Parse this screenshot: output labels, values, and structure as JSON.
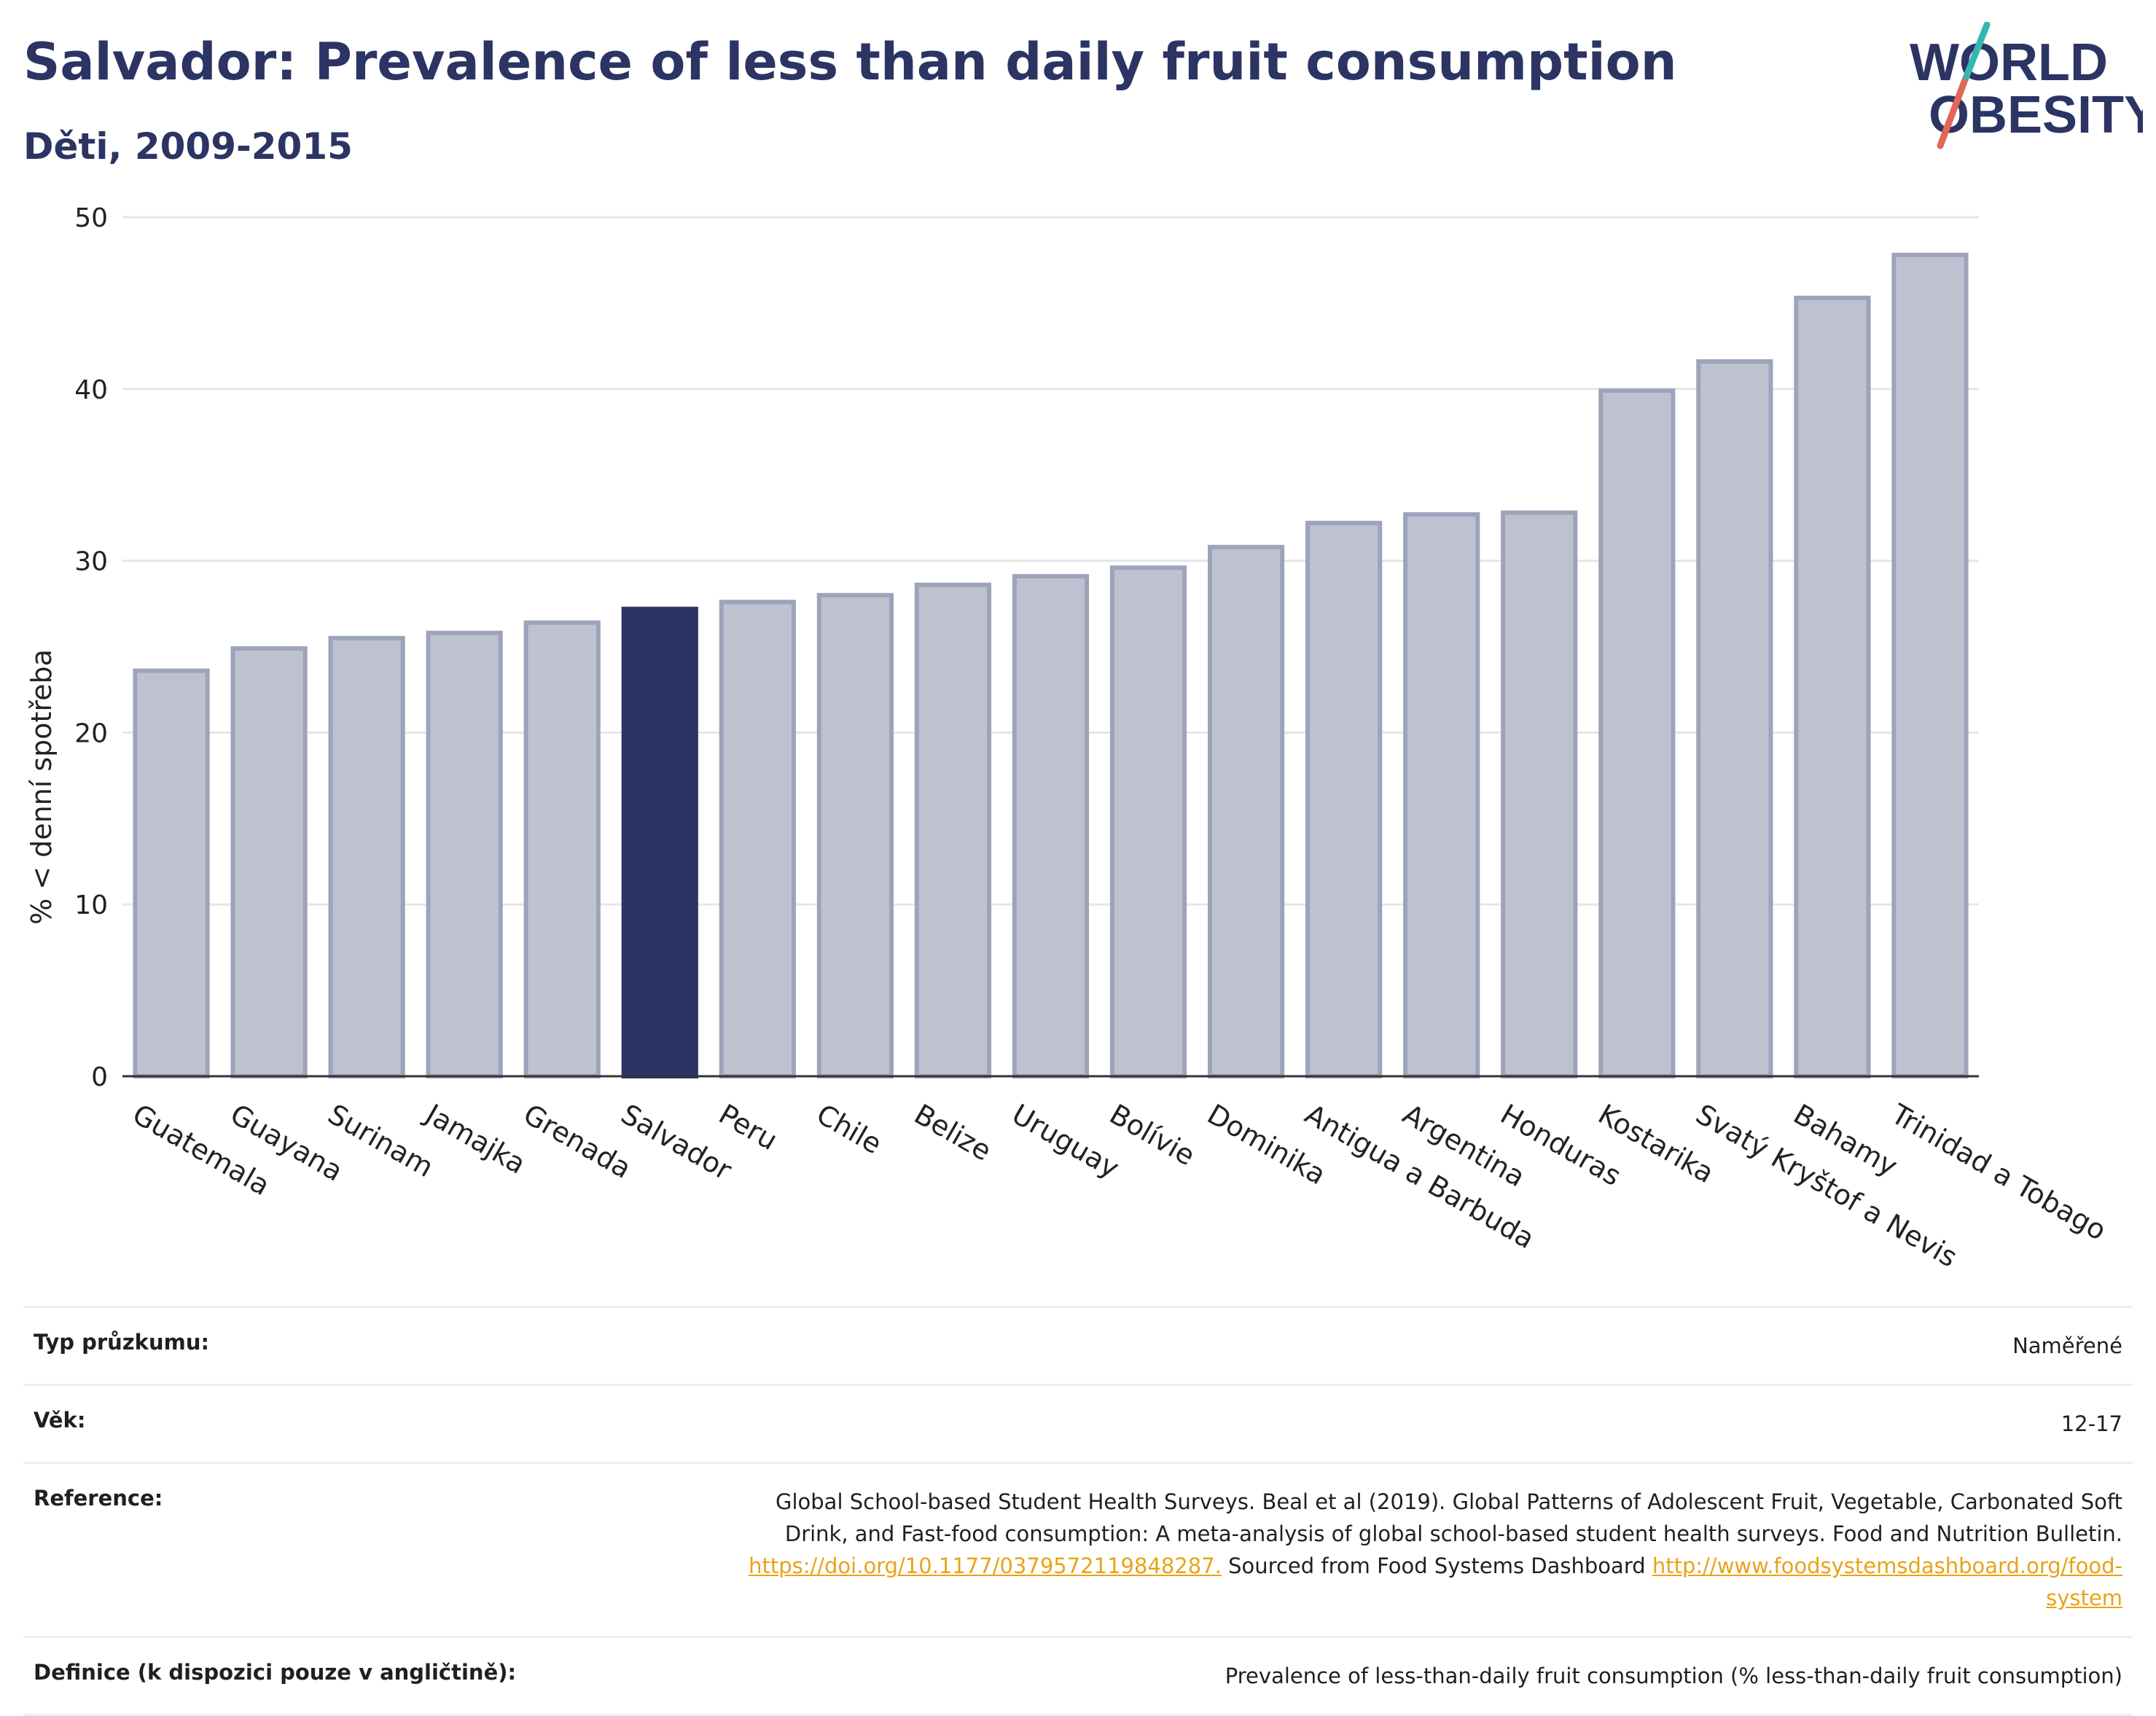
{
  "header": {
    "title": "Salvador: Prevalence of less than daily fruit consumption",
    "subtitle": "Děti, 2009-2015"
  },
  "logo": {
    "line1": "WORLD",
    "line2": "OBESITY",
    "icon": "world-obesity-logo"
  },
  "colors": {
    "highlight": "#2b3463",
    "bar_fill": "#bec2d0",
    "bar_edge": "#9da3ba",
    "title": "#2b3463",
    "link": "#e8a318",
    "grid": "#e6e6e6"
  },
  "chart_data": {
    "type": "bar",
    "ylabel": "% < denní spotřeba",
    "xlabel": "",
    "ylim": [
      0,
      50
    ],
    "yticks": [
      0,
      10,
      20,
      30,
      40,
      50
    ],
    "grid": true,
    "highlight": "Salvador",
    "categories": [
      "Guatemala",
      "Guayana",
      "Surinam",
      "Jamajka",
      "Grenada",
      "Salvador",
      "Peru",
      "Chile",
      "Belize",
      "Uruguay",
      "Bolívie",
      "Dominika",
      "Antigua a Barbuda",
      "Argentina",
      "Honduras",
      "Kostarika",
      "Svatý Kryštof a Nevis",
      "Bahamy",
      "Trinidad a Tobago"
    ],
    "values": [
      23.6,
      24.9,
      25.5,
      25.8,
      26.4,
      27.2,
      27.6,
      28.0,
      28.6,
      29.1,
      29.6,
      30.8,
      32.2,
      32.7,
      32.8,
      39.9,
      41.6,
      45.3,
      47.8
    ]
  },
  "meta": {
    "rows": [
      {
        "label": "Typ průzkumu:",
        "value": "Naměřené"
      },
      {
        "label": "Věk:",
        "value": "12-17"
      },
      {
        "label": "Reference:",
        "text1": "Global School-based Student Health Surveys. Beal et al (2019). Global Patterns of Adolescent Fruit, Vegetable, Carbonated Soft Drink, and Fast-food consumption: A meta-analysis of global school-based student health surveys. Food and Nutrition Bulletin.",
        "link1": "https://doi.org/10.1177/0379572119848287.",
        "text2": "Sourced from Food Systems Dashboard",
        "link2": "http://www.foodsystemsdashboard.org/food-system"
      },
      {
        "label": "Definice (k dispozici pouze v angličtině):",
        "value": "Prevalence of less-than-daily fruit consumption (% less-than-daily fruit consumption)"
      }
    ]
  }
}
